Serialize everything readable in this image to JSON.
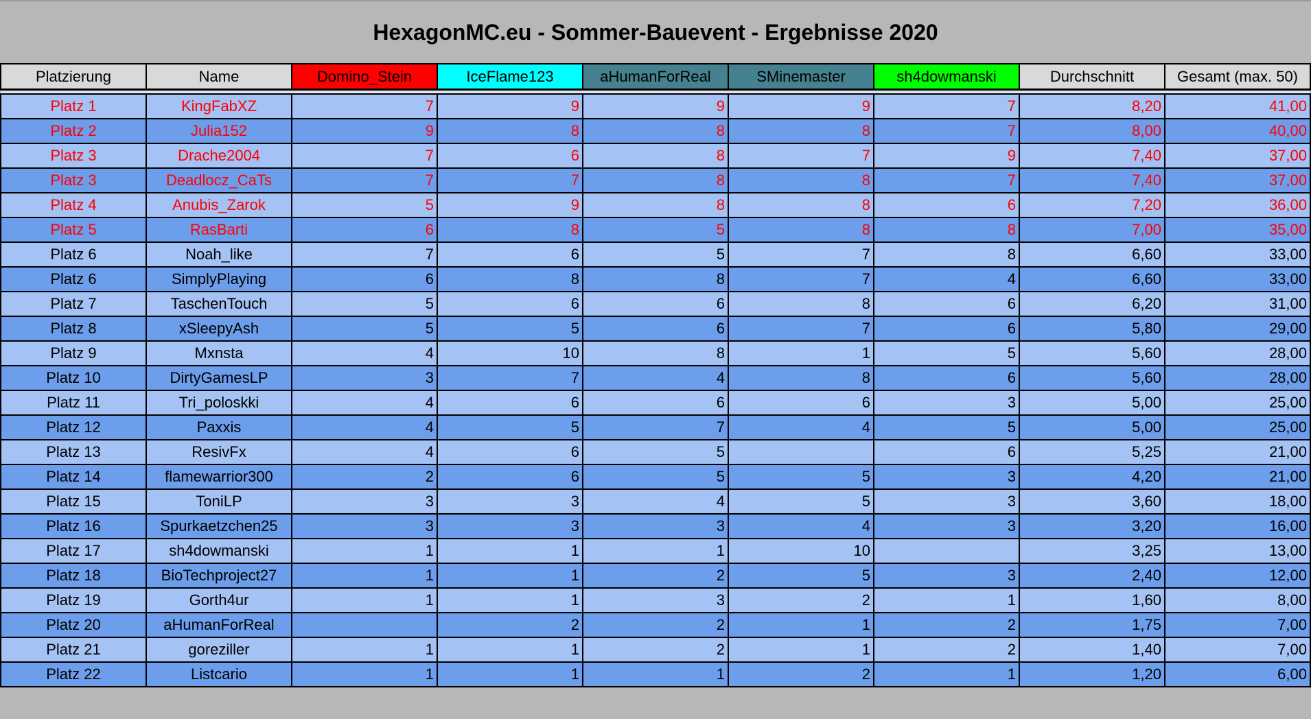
{
  "title": "HexagonMC.eu - Sommer-Bauevent - Ergebnisse 2020",
  "columns": [
    {
      "label": "Platzierung",
      "bg": "#d9d9d9"
    },
    {
      "label": "Name",
      "bg": "#d9d9d9"
    },
    {
      "label": "Domino_Stein",
      "bg": "#ff0000"
    },
    {
      "label": "IceFlame123",
      "bg": "#00ffff"
    },
    {
      "label": "aHumanForReal",
      "bg": "#45818e"
    },
    {
      "label": "SMinemaster",
      "bg": "#45818e"
    },
    {
      "label": "sh4dowmanski",
      "bg": "#00ff00"
    },
    {
      "label": "Durchschnitt",
      "bg": "#d9d9d9"
    },
    {
      "label": "Gesamt (max. 50)",
      "bg": "#d9d9d9"
    }
  ],
  "colors": {
    "row_light": "#a4c2f4",
    "row_dark": "#6d9eeb",
    "highlight_text": "#ff0000"
  },
  "rows": [
    {
      "highlight": true,
      "cells": [
        "Platz 1",
        "KingFabXZ",
        "7",
        "9",
        "9",
        "9",
        "7",
        "8,20",
        "41,00"
      ]
    },
    {
      "highlight": true,
      "cells": [
        "Platz 2",
        "Julia152",
        "9",
        "8",
        "8",
        "8",
        "7",
        "8,00",
        "40,00"
      ]
    },
    {
      "highlight": true,
      "cells": [
        "Platz 3",
        "Drache2004",
        "7",
        "6",
        "8",
        "7",
        "9",
        "7,40",
        "37,00"
      ]
    },
    {
      "highlight": true,
      "cells": [
        "Platz 3",
        "Deadlocz_CaTs",
        "7",
        "7",
        "8",
        "8",
        "7",
        "7,40",
        "37,00"
      ]
    },
    {
      "highlight": true,
      "cells": [
        "Platz 4",
        "Anubis_Zarok",
        "5",
        "9",
        "8",
        "8",
        "6",
        "7,20",
        "36,00"
      ]
    },
    {
      "highlight": true,
      "cells": [
        "Platz 5",
        "RasBarti",
        "6",
        "8",
        "5",
        "8",
        "8",
        "7,00",
        "35,00"
      ]
    },
    {
      "highlight": false,
      "cells": [
        "Platz 6",
        "Noah_like",
        "7",
        "6",
        "5",
        "7",
        "8",
        "6,60",
        "33,00"
      ]
    },
    {
      "highlight": false,
      "cells": [
        "Platz 6",
        "SimplyPlaying",
        "6",
        "8",
        "8",
        "7",
        "4",
        "6,60",
        "33,00"
      ]
    },
    {
      "highlight": false,
      "cells": [
        "Platz 7",
        "TaschenTouch",
        "5",
        "6",
        "6",
        "8",
        "6",
        "6,20",
        "31,00"
      ]
    },
    {
      "highlight": false,
      "cells": [
        "Platz 8",
        "xSleepyAsh",
        "5",
        "5",
        "6",
        "7",
        "6",
        "5,80",
        "29,00"
      ]
    },
    {
      "highlight": false,
      "cells": [
        "Platz 9",
        "Mxnsta",
        "4",
        "10",
        "8",
        "1",
        "5",
        "5,60",
        "28,00"
      ]
    },
    {
      "highlight": false,
      "cells": [
        "Platz 10",
        "DirtyGamesLP",
        "3",
        "7",
        "4",
        "8",
        "6",
        "5,60",
        "28,00"
      ]
    },
    {
      "highlight": false,
      "cells": [
        "Platz 11",
        "Tri_poloskki",
        "4",
        "6",
        "6",
        "6",
        "3",
        "5,00",
        "25,00"
      ]
    },
    {
      "highlight": false,
      "cells": [
        "Platz 12",
        "Paxxis",
        "4",
        "5",
        "7",
        "4",
        "5",
        "5,00",
        "25,00"
      ]
    },
    {
      "highlight": false,
      "cells": [
        "Platz 13",
        "ResivFx",
        "4",
        "6",
        "5",
        "",
        "6",
        "5,25",
        "21,00"
      ]
    },
    {
      "highlight": false,
      "cells": [
        "Platz 14",
        "flamewarrior300",
        "2",
        "6",
        "5",
        "5",
        "3",
        "4,20",
        "21,00"
      ]
    },
    {
      "highlight": false,
      "cells": [
        "Platz 15",
        "ToniLP",
        "3",
        "3",
        "4",
        "5",
        "3",
        "3,60",
        "18,00"
      ]
    },
    {
      "highlight": false,
      "cells": [
        "Platz 16",
        "Spurkaetzchen25",
        "3",
        "3",
        "3",
        "4",
        "3",
        "3,20",
        "16,00"
      ]
    },
    {
      "highlight": false,
      "cells": [
        "Platz 17",
        "sh4dowmanski",
        "1",
        "1",
        "1",
        "10",
        "",
        "3,25",
        "13,00"
      ]
    },
    {
      "highlight": false,
      "cells": [
        "Platz 18",
        "BioTechproject27",
        "1",
        "1",
        "2",
        "5",
        "3",
        "2,40",
        "12,00"
      ]
    },
    {
      "highlight": false,
      "cells": [
        "Platz 19",
        "Gorth4ur",
        "1",
        "1",
        "3",
        "2",
        "1",
        "1,60",
        "8,00"
      ]
    },
    {
      "highlight": false,
      "cells": [
        "Platz 20",
        "aHumanForReal",
        "",
        "2",
        "2",
        "1",
        "2",
        "1,75",
        "7,00"
      ]
    },
    {
      "highlight": false,
      "cells": [
        "Platz 21",
        "goreziller",
        "1",
        "1",
        "2",
        "1",
        "2",
        "1,40",
        "7,00"
      ]
    },
    {
      "highlight": false,
      "cells": [
        "Platz 22",
        "Listcario",
        "1",
        "1",
        "1",
        "2",
        "1",
        "1,20",
        "6,00"
      ]
    }
  ]
}
